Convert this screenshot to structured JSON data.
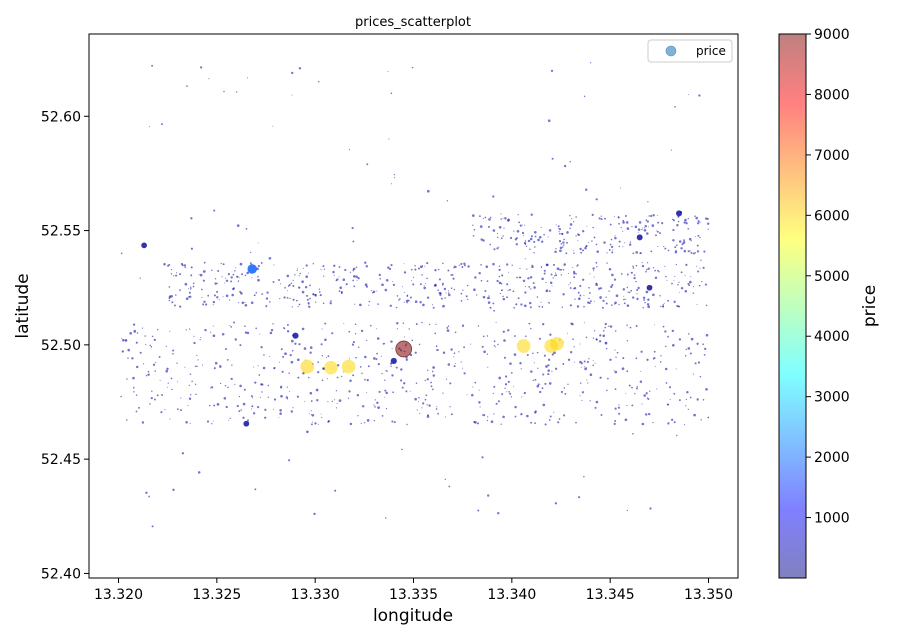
{
  "chart_data": {
    "type": "scatter",
    "title": "prices_scatterplot",
    "xlabel": "longitude",
    "ylabel": "latitude",
    "xlim": [
      13.3185,
      13.3515
    ],
    "ylim": [
      52.398,
      52.636
    ],
    "xticks": [
      {
        "value": 13.32,
        "label": "13.320"
      },
      {
        "value": 13.325,
        "label": "13.325"
      },
      {
        "value": 13.33,
        "label": "13.330"
      },
      {
        "value": 13.335,
        "label": "13.335"
      },
      {
        "value": 13.34,
        "label": "13.340"
      },
      {
        "value": 13.345,
        "label": "13.345"
      },
      {
        "value": 13.35,
        "label": "13.350"
      }
    ],
    "yticks": [
      {
        "value": 52.4,
        "label": "52.40"
      },
      {
        "value": 52.45,
        "label": "52.45"
      },
      {
        "value": 52.5,
        "label": "52.50"
      },
      {
        "value": 52.55,
        "label": "52.55"
      },
      {
        "value": 52.6,
        "label": "52.60"
      }
    ],
    "legend": {
      "label": "price",
      "placement": "top-right",
      "marker_color": "#7fb2d6"
    },
    "colorbar": {
      "label": "price",
      "min": 0,
      "max": 9000,
      "colormap": "jet",
      "ticks": [
        {
          "value": 1000,
          "label": "1000"
        },
        {
          "value": 2000,
          "label": "2000"
        },
        {
          "value": 3000,
          "label": "3000"
        },
        {
          "value": 4000,
          "label": "4000"
        },
        {
          "value": 5000,
          "label": "5000"
        },
        {
          "value": 6000,
          "label": "6000"
        },
        {
          "value": 7000,
          "label": "7000"
        },
        {
          "value": 8000,
          "label": "8000"
        },
        {
          "value": 9000,
          "label": "9000"
        }
      ]
    },
    "points": [
      {
        "x": 13.3296,
        "y": 52.4905,
        "price": 6050
      },
      {
        "x": 13.3308,
        "y": 52.49,
        "price": 5950
      },
      {
        "x": 13.3317,
        "y": 52.4905,
        "price": 6000
      },
      {
        "x": 13.3345,
        "y": 52.4982,
        "price": 9000
      },
      {
        "x": 13.3406,
        "y": 52.4995,
        "price": 6000
      },
      {
        "x": 13.342,
        "y": 52.4995,
        "price": 6000
      },
      {
        "x": 13.3423,
        "y": 52.5005,
        "price": 6000
      },
      {
        "x": 13.3268,
        "y": 52.5332,
        "price": 1900
      },
      {
        "x": 13.329,
        "y": 52.504,
        "price": 300
      },
      {
        "x": 13.3485,
        "y": 52.5575,
        "price": 250
      },
      {
        "x": 13.3213,
        "y": 52.5435,
        "price": 200
      },
      {
        "x": 13.3265,
        "y": 52.4655,
        "price": 200
      },
      {
        "x": 13.334,
        "y": 52.493,
        "price": 300
      },
      {
        "x": 13.3465,
        "y": 52.547,
        "price": 250
      },
      {
        "x": 13.347,
        "y": 52.525,
        "price": 200
      }
    ],
    "background_points": {
      "count": 1500,
      "price_range": [
        0,
        400
      ],
      "clusters": [
        {
          "x_range": [
            13.3225,
            13.35
          ],
          "y_range": [
            52.516,
            52.536
          ]
        },
        {
          "x_range": [
            13.338,
            13.35
          ],
          "y_range": [
            52.54,
            52.557
          ]
        },
        {
          "x_range": [
            13.32,
            13.35
          ],
          "y_range": [
            52.465,
            52.51
          ]
        },
        {
          "x_range": [
            13.32,
            13.35
          ],
          "y_range": [
            52.42,
            52.625
          ]
        }
      ]
    }
  }
}
